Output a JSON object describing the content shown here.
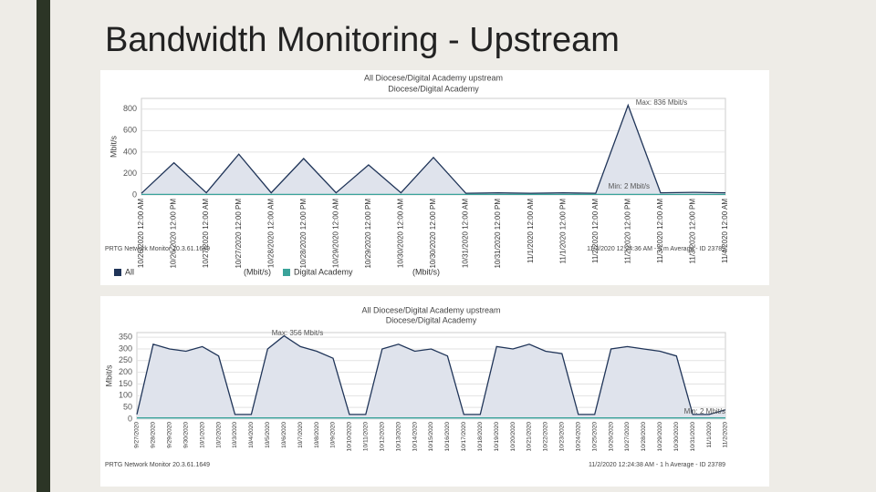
{
  "slide_title": "Bandwidth Monitoring - Upstream",
  "chart_data": [
    {
      "type": "line",
      "title": "All Diocese/Digital Academy upstream",
      "subtitle": "Diocese/Digital Academy",
      "y_label": "Mbit/s",
      "max_label": "Max: 836 Mbit/s",
      "min_label": "Min: 2 Mbit/s",
      "footer_left": "PRTG Network Monitor 20.3.61.1649",
      "footer_right": "11/3/2020 12:24:36 AM - 5 m Average - ID 23789",
      "legend": true,
      "categories": [
        "10/26/2020 12:00 AM",
        "10/26/2020 12:00 PM",
        "10/27/2020 12:00 AM",
        "10/27/2020 12:00 PM",
        "10/28/2020 12:00 AM",
        "10/28/2020 12:00 PM",
        "10/29/2020 12:00 AM",
        "10/29/2020 12:00 PM",
        "10/30/2020 12:00 AM",
        "10/30/2020 12:00 PM",
        "10/31/2020 12:00 AM",
        "10/31/2020 12:00 PM",
        "11/1/2020 12:00 AM",
        "11/1/2020 12:00 PM",
        "11/2/2020 12:00 AM",
        "11/2/2020 12:00 PM",
        "11/3/2020 12:00 AM",
        "11/3/2020 12:00 PM",
        "11/4/2020 12:00 AM"
      ],
      "series": [
        {
          "name": "All",
          "unit": "(Mbit/s)",
          "color": "#1f3458",
          "values": [
            15,
            300,
            20,
            380,
            20,
            340,
            20,
            280,
            20,
            350,
            15,
            20,
            15,
            20,
            15,
            836,
            20,
            25,
            20
          ]
        },
        {
          "name": "Digital Academy",
          "unit": "(Mbit/s)",
          "color": "#3aa39a",
          "values": [
            5,
            5,
            5,
            5,
            5,
            5,
            5,
            5,
            5,
            5,
            5,
            5,
            5,
            5,
            5,
            5,
            5,
            5,
            5
          ]
        }
      ],
      "ylim": [
        0,
        900
      ],
      "yticks": [
        0,
        200,
        400,
        600,
        800
      ],
      "grid": true
    },
    {
      "type": "line",
      "title": "All Diocese/Digital Academy upstream",
      "subtitle": "Diocese/Digital Academy",
      "y_label": "Mbit/s",
      "max_label": "Max: 356 Mbit/s",
      "min_label": "Min: 2 Mbit/s",
      "footer_left": "PRTG Network Monitor 20.3.61.1649",
      "footer_right": "11/2/2020 12:24:38 AM - 1 h Average - ID 23789",
      "legend": false,
      "categories": [
        "9/27/2020",
        "9/28/2020",
        "9/29/2020",
        "9/30/2020",
        "10/1/2020",
        "10/2/2020",
        "10/3/2020",
        "10/4/2020",
        "10/5/2020",
        "10/6/2020",
        "10/7/2020",
        "10/8/2020",
        "10/9/2020",
        "10/10/2020",
        "10/11/2020",
        "10/12/2020",
        "10/13/2020",
        "10/14/2020",
        "10/15/2020",
        "10/16/2020",
        "10/17/2020",
        "10/18/2020",
        "10/19/2020",
        "10/20/2020",
        "10/21/2020",
        "10/22/2020",
        "10/23/2020",
        "10/24/2020",
        "10/25/2020",
        "10/26/2020",
        "10/27/2020",
        "10/28/2020",
        "10/29/2020",
        "10/30/2020",
        "10/31/2020",
        "11/1/2020",
        "11/2/2020"
      ],
      "series": [
        {
          "color": "#1f3458",
          "values": [
            20,
            320,
            300,
            290,
            310,
            270,
            20,
            20,
            300,
            356,
            310,
            290,
            260,
            20,
            20,
            300,
            320,
            290,
            300,
            270,
            20,
            20,
            310,
            300,
            320,
            290,
            280,
            20,
            20,
            300,
            310,
            300,
            290,
            270,
            20,
            20,
            40
          ]
        },
        {
          "color": "#3aa39a",
          "values": [
            5,
            5,
            5,
            5,
            5,
            5,
            5,
            5,
            5,
            5,
            5,
            5,
            5,
            5,
            5,
            5,
            5,
            5,
            5,
            5,
            5,
            5,
            5,
            5,
            5,
            5,
            5,
            5,
            5,
            5,
            5,
            5,
            5,
            5,
            5,
            5,
            5
          ]
        }
      ],
      "ylim": [
        0,
        370
      ],
      "yticks": [
        0,
        50,
        100,
        150,
        200,
        250,
        300,
        350
      ],
      "grid": true
    }
  ]
}
